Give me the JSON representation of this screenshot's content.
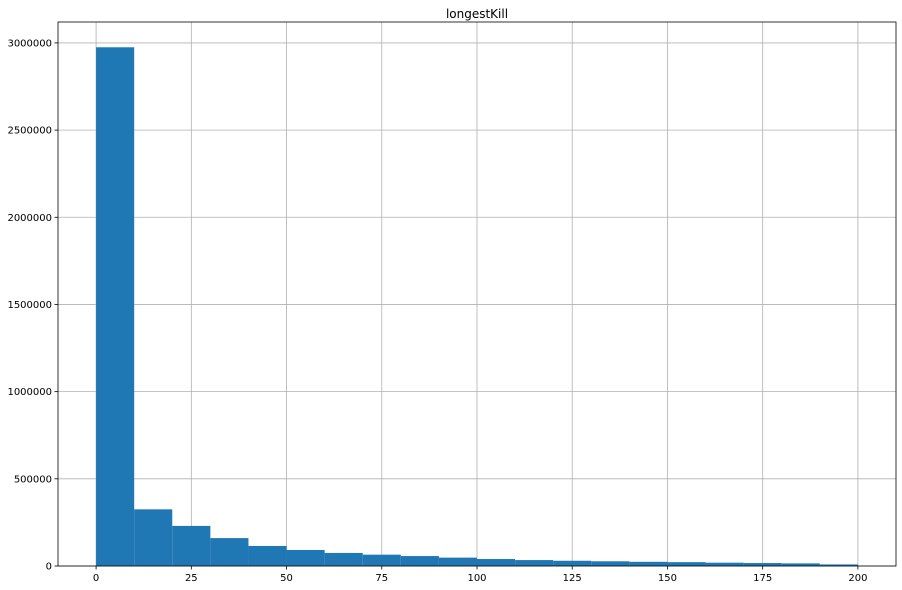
{
  "chart_data": {
    "type": "bar",
    "title": "longestKill",
    "xlabel": "",
    "ylabel": "",
    "grid": true,
    "bar_color": "#1f77b4",
    "bins": [
      {
        "x0": 0,
        "x1": 10,
        "count": 2975000
      },
      {
        "x0": 10,
        "x1": 20,
        "count": 325000
      },
      {
        "x0": 20,
        "x1": 30,
        "count": 230000
      },
      {
        "x0": 30,
        "x1": 40,
        "count": 160000
      },
      {
        "x0": 40,
        "x1": 50,
        "count": 115000
      },
      {
        "x0": 50,
        "x1": 60,
        "count": 92000
      },
      {
        "x0": 60,
        "x1": 70,
        "count": 75000
      },
      {
        "x0": 70,
        "x1": 80,
        "count": 65000
      },
      {
        "x0": 80,
        "x1": 90,
        "count": 57000
      },
      {
        "x0": 90,
        "x1": 100,
        "count": 48000
      },
      {
        "x0": 100,
        "x1": 110,
        "count": 40000
      },
      {
        "x0": 110,
        "x1": 120,
        "count": 34000
      },
      {
        "x0": 120,
        "x1": 130,
        "count": 30000
      },
      {
        "x0": 130,
        "x1": 140,
        "count": 27000
      },
      {
        "x0": 140,
        "x1": 150,
        "count": 24000
      },
      {
        "x0": 150,
        "x1": 160,
        "count": 22000
      },
      {
        "x0": 160,
        "x1": 170,
        "count": 19000
      },
      {
        "x0": 170,
        "x1": 180,
        "count": 17000
      },
      {
        "x0": 180,
        "x1": 190,
        "count": 15000
      },
      {
        "x0": 190,
        "x1": 200,
        "count": 9000
      }
    ],
    "xlim": [
      -10,
      210
    ],
    "ylim": [
      0,
      3120000
    ],
    "xticks": [
      0,
      25,
      50,
      75,
      100,
      125,
      150,
      175,
      200
    ],
    "xtick_labels": [
      "0",
      "25",
      "50",
      "75",
      "100",
      "125",
      "150",
      "175",
      "200"
    ],
    "yticks": [
      0,
      500000,
      1000000,
      1500000,
      2000000,
      2500000,
      3000000
    ],
    "ytick_labels": [
      "0",
      "500000",
      "1000000",
      "1500000",
      "2000000",
      "2500000",
      "3000000"
    ]
  }
}
